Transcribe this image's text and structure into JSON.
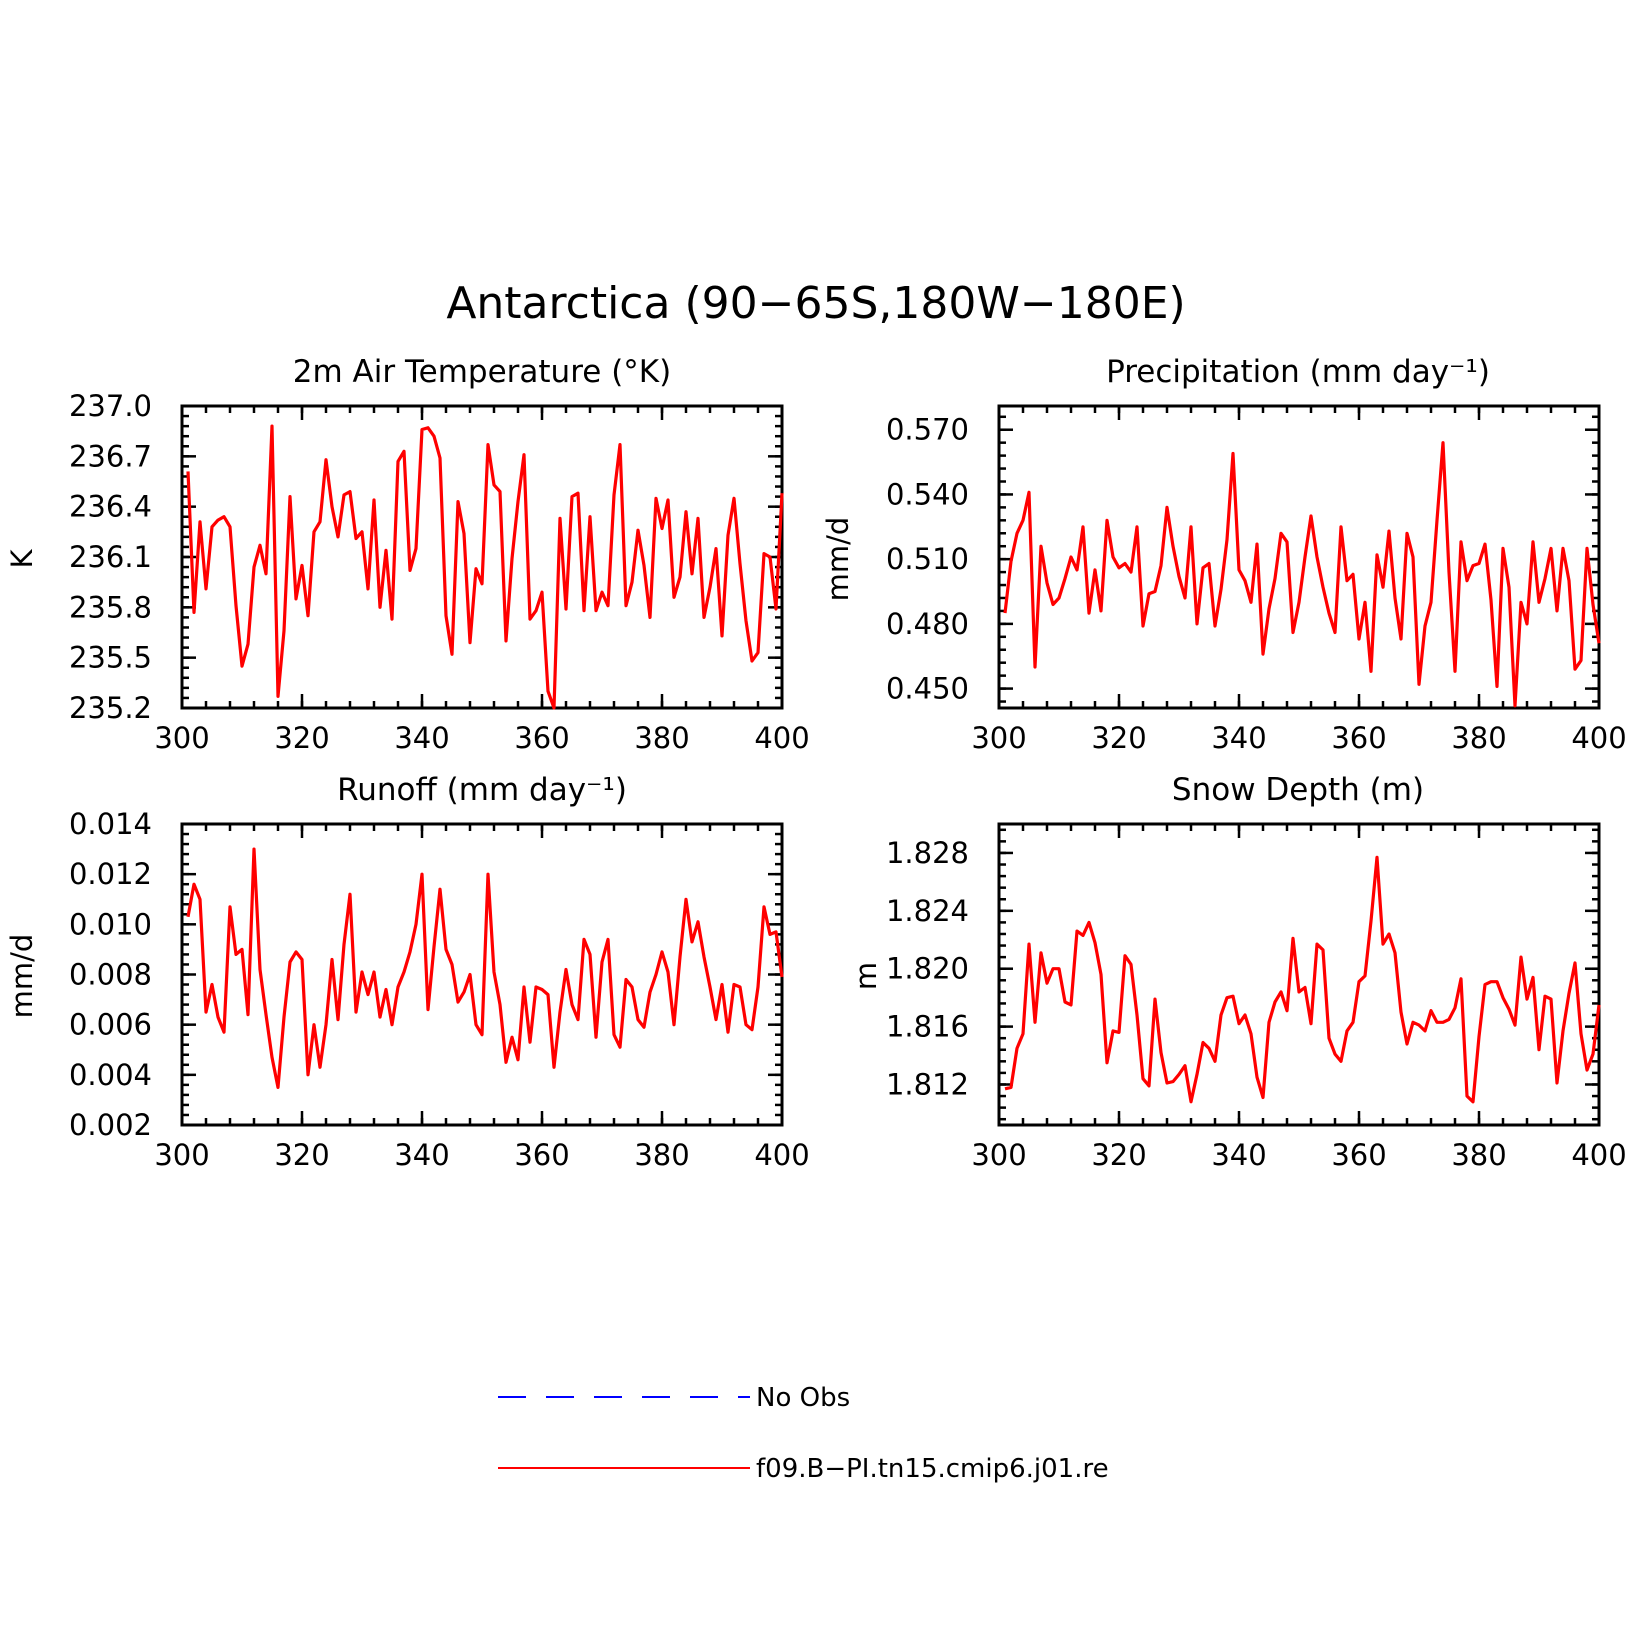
{
  "figure_title": "Antarctica (90−65S,180W−180E)",
  "colors": {
    "model": "#ff0000",
    "obs": "#0000ff",
    "axes": "#000000"
  },
  "legend": [
    {
      "label": "No Obs",
      "style": "dashed",
      "color": "#0000ff"
    },
    {
      "label": "f09.B−PI.tn15.cmip6.j01.re",
      "style": "solid",
      "color": "#ff0000"
    }
  ],
  "chart_data": [
    {
      "type": "line",
      "title": "2m Air Temperature (°K)",
      "xlabel": "",
      "ylabel": "K",
      "xlim": [
        300,
        400
      ],
      "ylim": [
        235.2,
        237.0
      ],
      "xticks": [
        300,
        320,
        340,
        360,
        380,
        400
      ],
      "yticks": [
        "235.2",
        "235.5",
        "235.8",
        "236.1",
        "236.4",
        "236.7",
        "237.0"
      ],
      "series": [
        {
          "color": "#ff0000",
          "x": [
            301,
            302,
            303,
            304,
            305,
            306,
            307,
            308,
            309,
            310,
            311,
            312,
            313,
            314,
            315,
            316,
            317,
            318,
            319,
            320,
            321,
            322,
            323,
            324,
            325,
            326,
            327,
            328,
            329,
            330,
            331,
            332,
            333,
            334,
            335,
            336,
            337,
            338,
            339,
            340,
            341,
            342,
            343,
            344,
            345,
            346,
            347,
            348,
            349,
            350,
            351,
            352,
            353,
            354,
            355,
            356,
            357,
            358,
            359,
            360,
            361,
            362,
            363,
            364,
            365,
            366,
            367,
            368,
            369,
            370,
            371,
            372,
            373,
            374,
            375,
            376,
            377,
            378,
            379,
            380,
            381,
            382,
            383,
            384,
            385,
            386,
            387,
            388,
            389,
            390,
            391,
            392,
            393,
            394,
            395,
            396,
            397,
            398,
            399,
            400
          ],
          "values": [
            236.61,
            235.77,
            236.31,
            235.91,
            236.28,
            236.32,
            236.34,
            236.28,
            235.81,
            235.45,
            235.58,
            236.04,
            236.17,
            236.0,
            236.88,
            235.27,
            235.66,
            236.46,
            235.85,
            236.05,
            235.75,
            236.25,
            236.31,
            236.68,
            236.4,
            236.22,
            236.47,
            236.49,
            236.21,
            236.25,
            235.91,
            236.44,
            235.8,
            236.14,
            235.73,
            236.67,
            236.73,
            236.02,
            236.15,
            236.86,
            236.87,
            236.82,
            236.69,
            235.75,
            235.52,
            236.43,
            236.24,
            235.59,
            236.03,
            235.94,
            236.77,
            236.53,
            236.49,
            235.6,
            236.09,
            236.43,
            236.71,
            235.73,
            235.78,
            235.89,
            235.3,
            235.2,
            236.33,
            235.79,
            236.46,
            236.48,
            235.78,
            236.34,
            235.78,
            235.89,
            235.81,
            236.47,
            236.77,
            235.81,
            235.95,
            236.26,
            236.05,
            235.74,
            236.45,
            236.27,
            236.44,
            235.86,
            235.98,
            236.37,
            236.0,
            236.33,
            235.74,
            235.92,
            236.15,
            235.63,
            236.23,
            236.45,
            236.06,
            235.72,
            235.48,
            235.53,
            236.12,
            236.1,
            235.79,
            236.48
          ]
        }
      ]
    },
    {
      "type": "line",
      "title": "Precipitation (mm day⁻¹)",
      "xlabel": "",
      "ylabel": "mm/d",
      "xlim": [
        300,
        400
      ],
      "ylim": [
        0.441,
        0.581
      ],
      "xticks": [
        300,
        320,
        340,
        360,
        380,
        400
      ],
      "yticks": [
        "0.450",
        "0.480",
        "0.510",
        "0.540",
        "0.570"
      ],
      "series": [
        {
          "color": "#ff0000",
          "x": [
            301,
            302,
            303,
            304,
            305,
            306,
            307,
            308,
            309,
            310,
            311,
            312,
            313,
            314,
            315,
            316,
            317,
            318,
            319,
            320,
            321,
            322,
            323,
            324,
            325,
            326,
            327,
            328,
            329,
            330,
            331,
            332,
            333,
            334,
            335,
            336,
            337,
            338,
            339,
            340,
            341,
            342,
            343,
            344,
            345,
            346,
            347,
            348,
            349,
            350,
            351,
            352,
            353,
            354,
            355,
            356,
            357,
            358,
            359,
            360,
            361,
            362,
            363,
            364,
            365,
            366,
            367,
            368,
            369,
            370,
            371,
            372,
            373,
            374,
            375,
            376,
            377,
            378,
            379,
            380,
            381,
            382,
            383,
            384,
            385,
            386,
            387,
            388,
            389,
            390,
            391,
            392,
            393,
            394,
            395,
            396,
            397,
            398,
            399,
            400
          ],
          "values": [
            0.485,
            0.509,
            0.522,
            0.528,
            0.541,
            0.46,
            0.516,
            0.499,
            0.489,
            0.492,
            0.501,
            0.511,
            0.505,
            0.525,
            0.485,
            0.505,
            0.486,
            0.528,
            0.511,
            0.506,
            0.508,
            0.504,
            0.525,
            0.479,
            0.494,
            0.495,
            0.507,
            0.534,
            0.516,
            0.502,
            0.492,
            0.525,
            0.48,
            0.506,
            0.508,
            0.479,
            0.496,
            0.519,
            0.559,
            0.505,
            0.5,
            0.49,
            0.517,
            0.466,
            0.487,
            0.501,
            0.522,
            0.518,
            0.476,
            0.49,
            0.511,
            0.53,
            0.511,
            0.497,
            0.485,
            0.476,
            0.525,
            0.5,
            0.503,
            0.473,
            0.49,
            0.458,
            0.512,
            0.497,
            0.523,
            0.492,
            0.473,
            0.522,
            0.511,
            0.452,
            0.479,
            0.49,
            0.528,
            0.564,
            0.504,
            0.458,
            0.518,
            0.5,
            0.507,
            0.508,
            0.517,
            0.491,
            0.451,
            0.515,
            0.497,
            0.442,
            0.49,
            0.48,
            0.518,
            0.49,
            0.501,
            0.515,
            0.486,
            0.515,
            0.5,
            0.459,
            0.463,
            0.515,
            0.489,
            0.471
          ]
        }
      ]
    },
    {
      "type": "line",
      "title": "Runoff (mm day⁻¹)",
      "xlabel": "",
      "ylabel": "mm/d",
      "xlim": [
        300,
        400
      ],
      "ylim": [
        0.002,
        0.014
      ],
      "xticks": [
        300,
        320,
        340,
        360,
        380,
        400
      ],
      "yticks": [
        "0.002",
        "0.004",
        "0.006",
        "0.008",
        "0.010",
        "0.012",
        "0.014"
      ],
      "series": [
        {
          "color": "#ff0000",
          "x": [
            301,
            302,
            303,
            304,
            305,
            306,
            307,
            308,
            309,
            310,
            311,
            312,
            313,
            314,
            315,
            316,
            317,
            318,
            319,
            320,
            321,
            322,
            323,
            324,
            325,
            326,
            327,
            328,
            329,
            330,
            331,
            332,
            333,
            334,
            335,
            336,
            337,
            338,
            339,
            340,
            341,
            342,
            343,
            344,
            345,
            346,
            347,
            348,
            349,
            350,
            351,
            352,
            353,
            354,
            355,
            356,
            357,
            358,
            359,
            360,
            361,
            362,
            363,
            364,
            365,
            366,
            367,
            368,
            369,
            370,
            371,
            372,
            373,
            374,
            375,
            376,
            377,
            378,
            379,
            380,
            381,
            382,
            383,
            384,
            385,
            386,
            387,
            388,
            389,
            390,
            391,
            392,
            393,
            394,
            395,
            396,
            397,
            398,
            399,
            400
          ],
          "values": [
            0.0103,
            0.0116,
            0.011,
            0.0065,
            0.0076,
            0.0063,
            0.0057,
            0.0107,
            0.0088,
            0.009,
            0.0064,
            0.013,
            0.0082,
            0.0064,
            0.0047,
            0.0035,
            0.0063,
            0.0085,
            0.0089,
            0.0086,
            0.004,
            0.006,
            0.0043,
            0.006,
            0.0086,
            0.0062,
            0.0092,
            0.0112,
            0.0065,
            0.0081,
            0.0072,
            0.0081,
            0.0063,
            0.0074,
            0.006,
            0.0075,
            0.0081,
            0.0089,
            0.01,
            0.012,
            0.0066,
            0.0091,
            0.0114,
            0.009,
            0.0084,
            0.0069,
            0.0073,
            0.008,
            0.006,
            0.0056,
            0.012,
            0.0081,
            0.0068,
            0.0045,
            0.0055,
            0.0046,
            0.0075,
            0.0053,
            0.0075,
            0.0074,
            0.0072,
            0.0043,
            0.0065,
            0.0082,
            0.0068,
            0.0062,
            0.0094,
            0.0088,
            0.0055,
            0.0085,
            0.0094,
            0.0056,
            0.0051,
            0.0078,
            0.0075,
            0.0062,
            0.0059,
            0.0073,
            0.008,
            0.0089,
            0.0081,
            0.006,
            0.0087,
            0.011,
            0.0093,
            0.0101,
            0.0087,
            0.0075,
            0.0062,
            0.0076,
            0.0057,
            0.0076,
            0.0075,
            0.006,
            0.0058,
            0.0075,
            0.0107,
            0.0096,
            0.0097,
            0.0079
          ]
        }
      ]
    },
    {
      "type": "line",
      "title": "Snow Depth (m)",
      "xlabel": "",
      "ylabel": "m",
      "xlim": [
        300,
        400
      ],
      "ylim": [
        1.8092,
        1.83
      ],
      "xticks": [
        300,
        320,
        340,
        360,
        380,
        400
      ],
      "yticks": [
        "1.812",
        "1.816",
        "1.820",
        "1.824",
        "1.828"
      ],
      "series": [
        {
          "color": "#ff0000",
          "x": [
            301,
            302,
            303,
            304,
            305,
            306,
            307,
            308,
            309,
            310,
            311,
            312,
            313,
            314,
            315,
            316,
            317,
            318,
            319,
            320,
            321,
            322,
            323,
            324,
            325,
            326,
            327,
            328,
            329,
            330,
            331,
            332,
            333,
            334,
            335,
            336,
            337,
            338,
            339,
            340,
            341,
            342,
            343,
            344,
            345,
            346,
            347,
            348,
            349,
            350,
            351,
            352,
            353,
            354,
            355,
            356,
            357,
            358,
            359,
            360,
            361,
            362,
            363,
            364,
            365,
            366,
            367,
            368,
            369,
            370,
            371,
            372,
            373,
            374,
            375,
            376,
            377,
            378,
            379,
            380,
            381,
            382,
            383,
            384,
            385,
            386,
            387,
            388,
            389,
            390,
            391,
            392,
            393,
            394,
            395,
            396,
            397,
            398,
            399,
            400
          ],
          "values": [
            1.8117,
            1.8118,
            1.8145,
            1.8155,
            1.8217,
            1.8163,
            1.8211,
            1.819,
            1.82,
            1.82,
            1.8177,
            1.8175,
            1.8226,
            1.8223,
            1.8232,
            1.8218,
            1.8196,
            1.8135,
            1.8157,
            1.8156,
            1.8209,
            1.8203,
            1.8168,
            1.8124,
            1.8119,
            1.8179,
            1.8142,
            1.8121,
            1.8122,
            1.8127,
            1.8133,
            1.8108,
            1.8127,
            1.8149,
            1.8145,
            1.8136,
            1.8168,
            1.818,
            1.8181,
            1.8162,
            1.8168,
            1.8155,
            1.8125,
            1.8111,
            1.8163,
            1.8177,
            1.8184,
            1.8171,
            1.8221,
            1.8184,
            1.8187,
            1.8162,
            1.8217,
            1.8213,
            1.8152,
            1.8141,
            1.8136,
            1.8157,
            1.8163,
            1.8191,
            1.8195,
            1.8233,
            1.8277,
            1.8217,
            1.8224,
            1.8211,
            1.817,
            1.8148,
            1.8163,
            1.8161,
            1.8157,
            1.8171,
            1.8163,
            1.8163,
            1.8165,
            1.8173,
            1.8193,
            1.8112,
            1.8108,
            1.8153,
            1.8189,
            1.8191,
            1.8191,
            1.818,
            1.8172,
            1.8161,
            1.8208,
            1.8179,
            1.8194,
            1.8144,
            1.8181,
            1.8179,
            1.8121,
            1.8157,
            1.8183,
            1.8204,
            1.8155,
            1.813,
            1.8141,
            1.8175
          ]
        }
      ]
    }
  ]
}
